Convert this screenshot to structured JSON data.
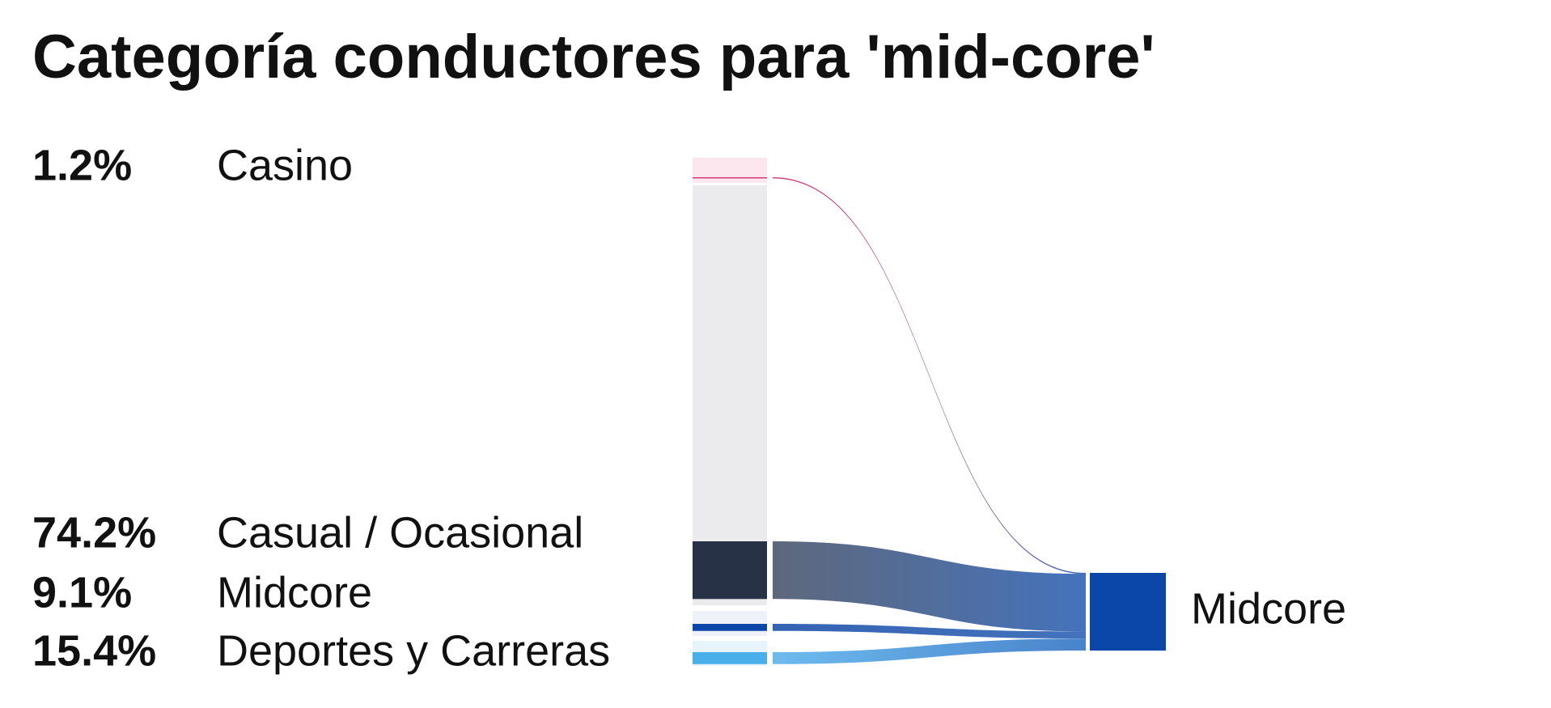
{
  "chart_data": {
    "type": "sankey",
    "title": "Categoría conductores para 'mid-core'",
    "categories": [
      "Casino",
      "Casual / Ocasional",
      "Midcore",
      "Deportes y Carreras"
    ],
    "values": [
      1.2,
      74.2,
      9.1,
      15.4
    ],
    "value_labels": [
      "1.2%",
      "74.2%",
      "9.1%",
      "15.4%"
    ],
    "colors": [
      "#d63a78",
      "#283247",
      "#0a47a8",
      "#4aaee8"
    ],
    "target": "Midcore",
    "target_color": "#0a47a8"
  }
}
